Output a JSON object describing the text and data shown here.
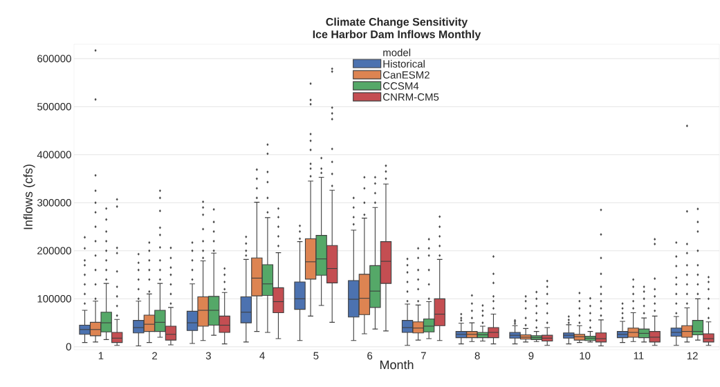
{
  "chart_data": {
    "type": "box",
    "title": "Climate Change Sensitivity",
    "subtitle": "Ice Harbor Dam Inflows Monthly",
    "xlabel": "Month",
    "ylabel": "Inflows (cfs)",
    "legend_title": "model",
    "categories": [
      "1",
      "2",
      "3",
      "4",
      "5",
      "6",
      "7",
      "8",
      "9",
      "10",
      "11",
      "12"
    ],
    "ylim": [
      -6000,
      630000
    ],
    "yticks": [
      0,
      100000,
      200000,
      300000,
      400000,
      500000,
      600000
    ],
    "grid": "y",
    "legend": "top",
    "series": [
      {
        "name": "Historical",
        "color": "#4c72b0",
        "boxes": [
          {
            "low": 9000,
            "q1": 26000,
            "median": 36000,
            "q3": 45000,
            "high": 76000,
            "outliers": [
              90000,
              110000,
              130000,
              150000,
              170000,
              180000,
              205000,
              228000
            ]
          },
          {
            "low": 2000,
            "q1": 29000,
            "median": 40000,
            "q3": 55000,
            "high": 95000,
            "outliers": [
              100000,
              120000,
              140000,
              160000,
              175000,
              193000
            ]
          },
          {
            "low": 7000,
            "q1": 34000,
            "median": 50000,
            "q3": 74000,
            "high": 131000,
            "outliers": [
              140000,
              160000,
              180000,
              200000,
              217000
            ]
          },
          {
            "low": 10000,
            "q1": 50000,
            "median": 72000,
            "q3": 104000,
            "high": 182000,
            "outliers": [
              190000,
              200000,
              215000,
              229000
            ]
          },
          {
            "low": 13000,
            "q1": 78000,
            "median": 100000,
            "q3": 135000,
            "high": 219000,
            "outliers": [
              225000,
              240000,
              252000
            ]
          },
          {
            "low": 13000,
            "q1": 62000,
            "median": 99000,
            "q3": 138000,
            "high": 243000,
            "outliers": [
              255000,
              270000,
              290000,
              310000
            ]
          },
          {
            "low": 3000,
            "q1": 30000,
            "median": 40000,
            "q3": 55000,
            "high": 89000,
            "outliers": [
              95000,
              115000,
              135000,
              155000,
              170000,
              183000
            ]
          },
          {
            "low": 6000,
            "q1": 19000,
            "median": 26000,
            "q3": 32000,
            "high": 49000,
            "outliers": [
              55000,
              60000,
              68000
            ]
          },
          {
            "low": 6000,
            "q1": 18000,
            "median": 24000,
            "q3": 30000,
            "high": 44000,
            "outliers": [
              48000,
              52000,
              55000
            ]
          },
          {
            "low": 6000,
            "q1": 18000,
            "median": 24000,
            "q3": 29000,
            "high": 46000,
            "outliers": [
              50000,
              56000,
              63000
            ]
          },
          {
            "low": 9000,
            "q1": 19000,
            "median": 26000,
            "q3": 32000,
            "high": 53000,
            "outliers": [
              60000,
              70000,
              80000,
              90000
            ]
          },
          {
            "low": 3000,
            "q1": 22000,
            "median": 30000,
            "q3": 39000,
            "high": 63000,
            "outliers": [
              70000,
              90000,
              110000,
              130000,
              144000,
              168000,
              188000,
              217000
            ]
          }
        ]
      },
      {
        "name": "CanESM2",
        "color": "#dd8452",
        "boxes": [
          {
            "low": 10000,
            "q1": 23000,
            "median": 36000,
            "q3": 51000,
            "high": 95000,
            "outliers": [
              100000,
              130000,
              160000,
              190000,
              220000,
              250000,
              280000,
              300000,
              325000,
              357000,
              515000,
              617000
            ]
          },
          {
            "low": 9000,
            "q1": 32000,
            "median": 47000,
            "q3": 66000,
            "high": 110000,
            "outliers": [
              115000,
              140000,
              160000,
              180000,
              200000,
              217000
            ]
          },
          {
            "low": 13000,
            "q1": 43000,
            "median": 76000,
            "q3": 104000,
            "high": 179000,
            "outliers": [
              185000,
              200000,
              220000,
              245000,
              275000,
              290000,
              302000
            ]
          },
          {
            "low": 32000,
            "q1": 106000,
            "median": 143000,
            "q3": 185000,
            "high": 301000,
            "outliers": [
              310000,
              330000,
              350000,
              369000
            ]
          },
          {
            "low": 64000,
            "q1": 141000,
            "median": 177000,
            "q3": 225000,
            "high": 345000,
            "outliers": [
              355000,
              371000,
              381000,
              410000,
              429000,
              443000,
              505000,
              514000,
              548000
            ]
          },
          {
            "low": 27000,
            "q1": 67000,
            "median": 101000,
            "q3": 151000,
            "high": 268000,
            "outliers": [
              275000,
              300000,
              330000,
              353000
            ]
          },
          {
            "low": 14000,
            "q1": 29000,
            "median": 39000,
            "q3": 52000,
            "high": 87000,
            "outliers": [
              95000,
              120000,
              140000,
              160000,
              185000,
              205000
            ]
          },
          {
            "low": 11000,
            "q1": 19000,
            "median": 26000,
            "q3": 32000,
            "high": 50000,
            "outliers": [
              60000,
              75000,
              90000,
              107000
            ]
          },
          {
            "low": 10000,
            "q1": 16000,
            "median": 20000,
            "q3": 25000,
            "high": 38000,
            "outliers": [
              45000,
              60000,
              80000,
              95000,
              105000
            ]
          },
          {
            "low": 9000,
            "q1": 14000,
            "median": 21000,
            "q3": 26000,
            "high": 44000,
            "outliers": [
              50000,
              65000,
              80000,
              95000,
              112000
            ]
          },
          {
            "low": 11000,
            "q1": 20000,
            "median": 30000,
            "q3": 39000,
            "high": 71000,
            "outliers": [
              80000,
              95000,
              110000,
              125000,
              140000
            ]
          },
          {
            "low": 10000,
            "q1": 20000,
            "median": 32000,
            "q3": 44000,
            "high": 81000,
            "outliers": [
              90000,
              110000,
              130000,
              150000,
              170000,
              195000,
              214000,
              282000,
              460000
            ]
          }
        ]
      },
      {
        "name": "CCSM4",
        "color": "#55a868",
        "boxes": [
          {
            "low": 15000,
            "q1": 31000,
            "median": 50000,
            "q3": 72000,
            "high": 132000,
            "outliers": [
              140000,
              160000,
              180000,
              200000,
              220000,
              240000,
              265000,
              288000
            ]
          },
          {
            "low": 20000,
            "q1": 32000,
            "median": 51000,
            "q3": 76000,
            "high": 132000,
            "outliers": [
              140000,
              160000,
              180000,
              207000,
              233000,
              248000,
              283000,
              310000,
              325000
            ]
          },
          {
            "low": 24000,
            "q1": 45000,
            "median": 76000,
            "q3": 105000,
            "high": 195000,
            "outliers": [
              200000,
              220000,
              240000,
              260000,
              286000
            ]
          },
          {
            "low": 30000,
            "q1": 107000,
            "median": 131000,
            "q3": 171000,
            "high": 269000,
            "outliers": [
              280000,
              310000,
              343000,
              364000,
              402000,
              421000
            ]
          },
          {
            "low": 86000,
            "q1": 149000,
            "median": 183000,
            "q3": 232000,
            "high": 353000,
            "outliers": [
              362000,
              371000,
              393000
            ]
          },
          {
            "low": 37000,
            "q1": 82000,
            "median": 116000,
            "q3": 169000,
            "high": 290000,
            "outliers": [
              300000,
              320000,
              340000,
              353000
            ]
          },
          {
            "low": 17000,
            "q1": 31000,
            "median": 43000,
            "q3": 58000,
            "high": 94000,
            "outliers": [
              100000,
              130000,
              160000,
              190000,
              205000,
              224000
            ]
          },
          {
            "low": 12000,
            "q1": 19000,
            "median": 25000,
            "q3": 30000,
            "high": 43000,
            "outliers": [
              50000,
              65000,
              75000,
              86000
            ]
          },
          {
            "low": 11000,
            "q1": 15000,
            "median": 19000,
            "q3": 23000,
            "high": 32000,
            "outliers": [
              40000,
              55000,
              70000,
              85000,
              100000,
              114000
            ]
          },
          {
            "low": 10000,
            "q1": 13000,
            "median": 18000,
            "q3": 22000,
            "high": 32000,
            "outliers": [
              40000,
              55000,
              70000,
              85000,
              101000
            ]
          },
          {
            "low": 10000,
            "q1": 19000,
            "median": 28000,
            "q3": 37000,
            "high": 60000,
            "outliers": [
              70000,
              85000,
              100000,
              115000,
              125000
            ]
          },
          {
            "low": 14000,
            "q1": 25000,
            "median": 32000,
            "q3": 55000,
            "high": 100000,
            "outliers": [
              110000,
              130000,
              150000,
              170000,
              200000,
              240000,
              260000,
              287000
            ]
          }
        ]
      },
      {
        "name": "CNRM-CM5",
        "color": "#c44e52",
        "boxes": [
          {
            "low": 3000,
            "q1": 9000,
            "median": 18000,
            "q3": 30000,
            "high": 57000,
            "outliers": [
              65000,
              85000,
              105000,
              125000,
              157000,
              195000,
              206000,
              292000,
              307000
            ]
          },
          {
            "low": 4000,
            "q1": 14000,
            "median": 26000,
            "q3": 43000,
            "high": 82000,
            "outliers": [
              90000,
              110000,
              130000,
              150000,
              165000,
              185000,
              206000
            ]
          },
          {
            "low": 6000,
            "q1": 30000,
            "median": 45000,
            "q3": 64000,
            "high": 113000,
            "outliers": [
              120000,
              135000,
              150000,
              163000
            ]
          },
          {
            "low": 17000,
            "q1": 71000,
            "median": 94000,
            "q3": 123000,
            "high": 196000,
            "outliers": [
              210000,
              230000,
              250000,
              270000,
              288000
            ]
          },
          {
            "low": 51000,
            "q1": 133000,
            "median": 163000,
            "q3": 211000,
            "high": 326000,
            "outliers": [
              335000,
              360000,
              385000,
              412000,
              474000,
              486000,
              498000,
              573000,
              579000
            ]
          },
          {
            "low": 33000,
            "q1": 132000,
            "median": 178000,
            "q3": 219000,
            "high": 339000,
            "outliers": [
              350000,
              365000,
              377000
            ]
          },
          {
            "low": 13000,
            "q1": 44000,
            "median": 68000,
            "q3": 100000,
            "high": 182000,
            "outliers": [
              190000,
              210000,
              230000,
              250000,
              271000
            ]
          },
          {
            "low": 6000,
            "q1": 19000,
            "median": 30000,
            "q3": 40000,
            "high": 68000,
            "outliers": [
              80000,
              95000,
              105000,
              133000,
              152000,
              188000
            ]
          },
          {
            "low": 3000,
            "q1": 12000,
            "median": 18000,
            "q3": 24000,
            "high": 40000,
            "outliers": [
              50000,
              70000,
              90000,
              110000,
              125000,
              137000
            ]
          },
          {
            "low": 2000,
            "q1": 10000,
            "median": 17000,
            "q3": 29000,
            "high": 56000,
            "outliers": [
              65000,
              80000,
              95000,
              110000,
              125000,
              152000,
              185000,
              234000,
              285000
            ]
          },
          {
            "low": 3000,
            "q1": 10000,
            "median": 20000,
            "q3": 32000,
            "high": 64000,
            "outliers": [
              75000,
              90000,
              105000,
              120000,
              142000,
              214000,
              224000
            ]
          },
          {
            "low": 3000,
            "q1": 10000,
            "median": 17000,
            "q3": 27000,
            "high": 52000,
            "outliers": [
              60000,
              80000,
              100000,
              120000,
              135000,
              145000
            ]
          }
        ]
      }
    ]
  }
}
